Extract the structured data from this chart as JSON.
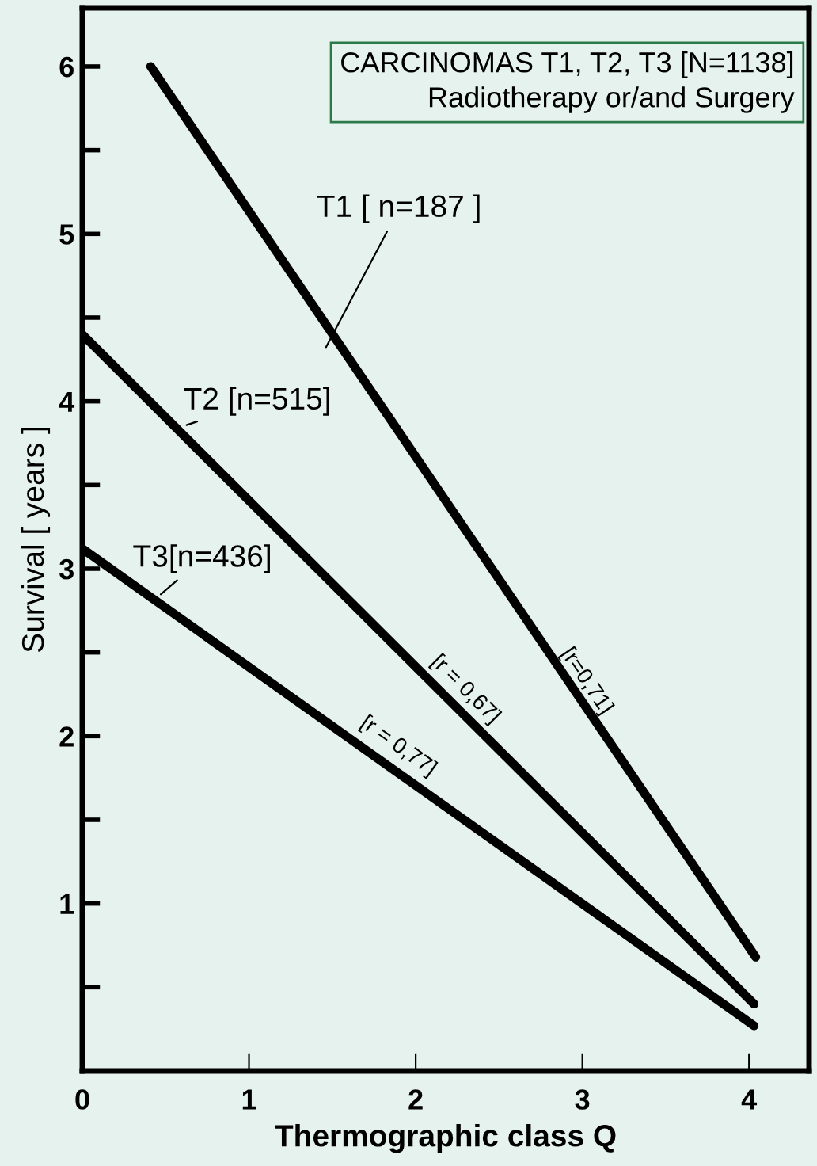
{
  "chart_data": {
    "type": "line",
    "xlabel": "Thermographic class Q",
    "ylabel": "Survival [ years ]",
    "xlim": [
      0,
      4.36
    ],
    "ylim": [
      0,
      6.35
    ],
    "xticks": [
      0,
      1,
      2,
      3,
      4
    ],
    "yticks": [
      {
        "value": 0.5,
        "label": null
      },
      1,
      {
        "value": 1.5,
        "label": null
      },
      2,
      {
        "value": 2.5,
        "label": null
      },
      3,
      {
        "value": 3.5,
        "label": null
      },
      4,
      {
        "value": 4.5,
        "label": null
      },
      5,
      {
        "value": 5.5,
        "label": null
      },
      6
    ],
    "series": [
      {
        "name": "T1 [ n=187 ]",
        "color": "#000000",
        "x": [
          0.41,
          4.04
        ],
        "values": [
          6.0,
          0.68
        ]
      },
      {
        "name": "T2 [n=515]",
        "color": "#000000",
        "x": [
          0,
          4.03
        ],
        "values": [
          4.4,
          0.4
        ]
      },
      {
        "name": "T3[n=436]",
        "color": "#000000",
        "x": [
          0,
          4.03
        ],
        "values": [
          3.12,
          0.27
        ]
      }
    ],
    "annotations": [
      "CARCINOMAS T1, T2, T3 [N=1138]\nRadiotherapy or/and Surgery",
      "[r=0,71]",
      "[r = 0,67]",
      "[r = 0,77]"
    ],
    "grid": false,
    "legend": false,
    "marker": "none",
    "line_style": "solid"
  }
}
